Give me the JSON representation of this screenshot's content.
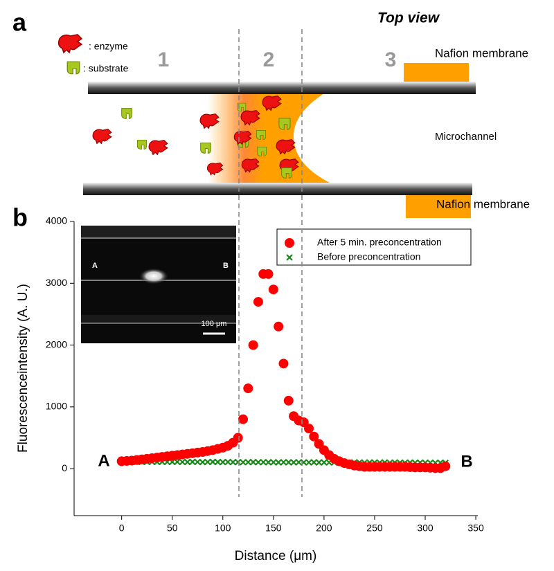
{
  "panel_a": {
    "label": "a",
    "view": "Top view",
    "enzyme_key": ": enzyme",
    "substrate_key": ": substrate",
    "zones": [
      "1",
      "2",
      "3"
    ],
    "membrane_top": "Nafion membrane",
    "channel": "Microchannel",
    "membrane_bottom": "Nafion membrane"
  },
  "panel_b_label": "b",
  "inset": {
    "left": "A",
    "right": "B",
    "scale_bar": "100 μm"
  },
  "end_labels": {
    "left": "A",
    "right": "B"
  },
  "chart_data": {
    "type": "scatter",
    "xlabel": "Distance (μm)",
    "ylabel": "Fluorescenceintensity (A. U.)",
    "xlim": [
      -47,
      352
    ],
    "ylim": [
      -760,
      4000
    ],
    "xticks": [
      0,
      50,
      100,
      150,
      200,
      250,
      300,
      350
    ],
    "yticks": [
      0,
      1000,
      2000,
      3000,
      4000
    ],
    "x": [
      0,
      5,
      10,
      15,
      20,
      25,
      30,
      35,
      40,
      45,
      50,
      55,
      60,
      65,
      70,
      75,
      80,
      85,
      90,
      95,
      100,
      105,
      110,
      115,
      120,
      125,
      130,
      135,
      140,
      145,
      150,
      155,
      160,
      165,
      170,
      175,
      180,
      185,
      190,
      195,
      200,
      205,
      210,
      215,
      220,
      225,
      230,
      235,
      240,
      245,
      250,
      255,
      260,
      265,
      270,
      275,
      280,
      285,
      290,
      295,
      300,
      305,
      310,
      315,
      320
    ],
    "series": [
      {
        "name": "After 5 min. preconcentration",
        "color": "#ff0000",
        "marker": "circle",
        "values": [
          120,
          125,
          130,
          140,
          150,
          160,
          170,
          180,
          190,
          200,
          210,
          220,
          230,
          240,
          250,
          260,
          270,
          285,
          300,
          320,
          340,
          370,
          420,
          500,
          800,
          1300,
          2000,
          2700,
          3150,
          3150,
          2900,
          2300,
          1700,
          1100,
          850,
          780,
          750,
          650,
          520,
          400,
          300,
          220,
          160,
          120,
          90,
          70,
          50,
          40,
          30,
          30,
          30,
          30,
          30,
          30,
          30,
          30,
          30,
          25,
          20,
          20,
          20,
          15,
          10,
          10,
          40
        ]
      },
      {
        "name": "Before preconcentration",
        "color": "#1a8a1a",
        "marker": "x",
        "values": [
          110,
          110,
          112,
          110,
          108,
          110,
          110,
          109,
          110,
          108,
          110,
          110,
          108,
          107,
          110,
          108,
          106,
          108,
          110,
          107,
          106,
          108,
          105,
          106,
          104,
          105,
          106,
          104,
          105,
          103,
          104,
          102,
          104,
          103,
          102,
          104,
          102,
          101,
          103,
          100,
          102,
          101,
          100,
          102,
          100,
          99,
          101,
          100,
          98,
          100,
          99,
          98,
          100,
          97,
          99,
          98,
          97,
          99,
          96,
          98,
          96,
          97,
          95,
          96,
          95
        ]
      }
    ],
    "legend": "upper right"
  }
}
